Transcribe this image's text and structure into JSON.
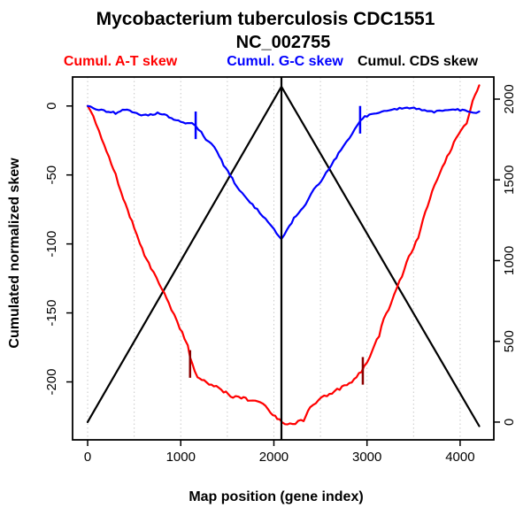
{
  "title": "Mycobacterium tuberculosis CDC1551",
  "subtitle": "NC_002755",
  "legend": [
    {
      "label": "Cumul. A-T skew",
      "color": "#FF0000"
    },
    {
      "label": "Cumul. G-C skew",
      "color": "#0000FF"
    },
    {
      "label": "Cumul. CDS skew",
      "color": "#000000"
    }
  ],
  "chart_data": {
    "type": "line",
    "title": "Mycobacterium tuberculosis CDC1551 NC_002755",
    "xlabel": "Map position (gene index)",
    "ylabel": "Cumulated normalized skew",
    "xlim": [
      -162,
      4362
    ],
    "ylim_left": [
      -242,
      21
    ],
    "ylim_right": [
      -110,
      2137
    ],
    "x_ticks": [
      0,
      1000,
      2000,
      3000,
      4000
    ],
    "yleft_ticks": [
      0,
      -50,
      -100,
      -150,
      -200
    ],
    "yright_ticks": [
      0,
      500,
      1000,
      1500,
      2000
    ],
    "grid": "vertical-dotted-every-500",
    "grid_color": "#c8c8c8",
    "legend_position": "top",
    "vline": {
      "x": 2081,
      "color": "#000000"
    },
    "series": [
      {
        "name": "Cumul. CDS skew",
        "axis": "right",
        "color": "#000000",
        "points": [
          [
            0,
            0
          ],
          [
            2081,
            2077
          ],
          [
            4205,
            -25
          ]
        ]
      },
      {
        "name": "Cumul. A-T skew",
        "axis": "left",
        "color": "#FF0000",
        "points": [
          [
            0,
            0
          ],
          [
            60,
            -8
          ],
          [
            150,
            -23
          ],
          [
            230,
            -38
          ],
          [
            300,
            -50
          ],
          [
            360,
            -63
          ],
          [
            430,
            -76
          ],
          [
            500,
            -88
          ],
          [
            560,
            -100
          ],
          [
            610,
            -108
          ],
          [
            680,
            -117
          ],
          [
            740,
            -125
          ],
          [
            800,
            -133
          ],
          [
            870,
            -142
          ],
          [
            930,
            -152
          ],
          [
            990,
            -161
          ],
          [
            1040,
            -168
          ],
          [
            1075,
            -174
          ],
          [
            1100,
            -183
          ],
          [
            1150,
            -192
          ],
          [
            1180,
            -197
          ],
          [
            1250,
            -199
          ],
          [
            1330,
            -202
          ],
          [
            1460,
            -207
          ],
          [
            1560,
            -211
          ],
          [
            1650,
            -211
          ],
          [
            1720,
            -213
          ],
          [
            1800,
            -214
          ],
          [
            1910,
            -217
          ],
          [
            1990,
            -224
          ],
          [
            2060,
            -228
          ],
          [
            2120,
            -231
          ],
          [
            2200,
            -231
          ],
          [
            2260,
            -228
          ],
          [
            2320,
            -229
          ],
          [
            2390,
            -218
          ],
          [
            2480,
            -213
          ],
          [
            2570,
            -210
          ],
          [
            2680,
            -206
          ],
          [
            2810,
            -201
          ],
          [
            2940,
            -193
          ],
          [
            3030,
            -181
          ],
          [
            3130,
            -166
          ],
          [
            3180,
            -155
          ],
          [
            3260,
            -143
          ],
          [
            3350,
            -127
          ],
          [
            3450,
            -110
          ],
          [
            3550,
            -95
          ],
          [
            3600,
            -82
          ],
          [
            3700,
            -62
          ],
          [
            3810,
            -45
          ],
          [
            3910,
            -30
          ],
          [
            3980,
            -21
          ],
          [
            4070,
            -12
          ],
          [
            4110,
            -2
          ],
          [
            4160,
            8
          ],
          [
            4205,
            15
          ]
        ]
      },
      {
        "name": "Cumul. G-C skew",
        "axis": "left",
        "color": "#0000FF",
        "points": [
          [
            0,
            0
          ],
          [
            60,
            -2
          ],
          [
            120,
            -3
          ],
          [
            200,
            -4
          ],
          [
            300,
            -5
          ],
          [
            400,
            -3
          ],
          [
            480,
            -4
          ],
          [
            550,
            -6
          ],
          [
            650,
            -7
          ],
          [
            750,
            -5
          ],
          [
            850,
            -7
          ],
          [
            950,
            -10
          ],
          [
            1050,
            -12
          ],
          [
            1120,
            -13
          ],
          [
            1160,
            -15
          ],
          [
            1220,
            -19
          ],
          [
            1270,
            -24
          ],
          [
            1330,
            -28
          ],
          [
            1390,
            -33
          ],
          [
            1460,
            -43
          ],
          [
            1530,
            -50
          ],
          [
            1600,
            -58
          ],
          [
            1660,
            -63
          ],
          [
            1720,
            -68
          ],
          [
            1820,
            -75
          ],
          [
            1910,
            -82
          ],
          [
            1970,
            -87
          ],
          [
            2030,
            -92
          ],
          [
            2080,
            -97
          ],
          [
            2140,
            -90
          ],
          [
            2240,
            -79
          ],
          [
            2340,
            -71
          ],
          [
            2430,
            -61
          ],
          [
            2530,
            -52
          ],
          [
            2620,
            -42
          ],
          [
            2720,
            -32
          ],
          [
            2810,
            -23
          ],
          [
            2870,
            -17
          ],
          [
            2930,
            -10
          ],
          [
            3000,
            -7
          ],
          [
            3100,
            -5
          ],
          [
            3240,
            -3
          ],
          [
            3350,
            -2
          ],
          [
            3430,
            -1
          ],
          [
            3530,
            -2
          ],
          [
            3620,
            -3
          ],
          [
            3720,
            -4
          ],
          [
            3810,
            -4
          ],
          [
            3900,
            -2
          ],
          [
            4000,
            -3
          ],
          [
            4080,
            -4
          ],
          [
            4140,
            -5
          ],
          [
            4205,
            -4
          ]
        ]
      }
    ],
    "markers": [
      {
        "series": "Cumul. A-T skew",
        "color": "#8B0000",
        "x": 1100,
        "y": -187,
        "half": 10
      },
      {
        "series": "Cumul. A-T skew",
        "color": "#8B0000",
        "x": 2955,
        "y": -192,
        "half": 10
      },
      {
        "series": "Cumul. G-C skew",
        "color": "#0000FF",
        "x": 1160,
        "y": -14,
        "half": 10
      },
      {
        "series": "Cumul. G-C skew",
        "color": "#0000FF",
        "x": 2926,
        "y": -10,
        "half": 10
      }
    ]
  }
}
